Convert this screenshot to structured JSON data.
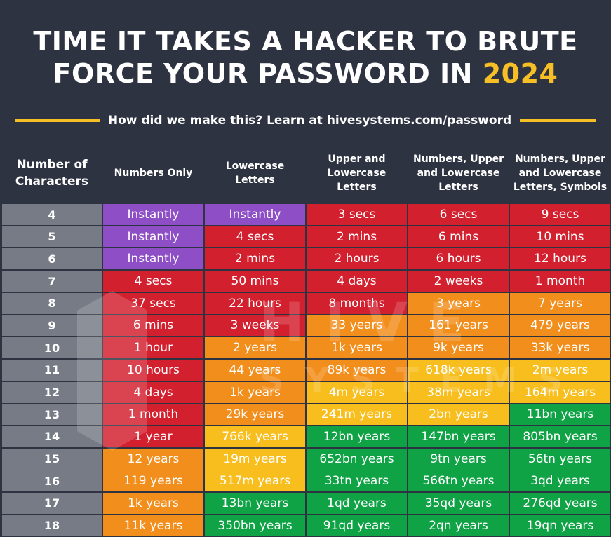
{
  "title": {
    "line1": "TIME IT TAKES A HACKER TO BRUTE",
    "line2_prefix": "FORCE YOUR PASSWORD IN ",
    "year": "2024"
  },
  "subtitle": "How did we make this? Learn at hivesystems.com/password",
  "watermark": {
    "word1": "HIVE",
    "word2": "SYSTEMS"
  },
  "headers": {
    "first": [
      "Number of",
      "Characters"
    ],
    "columns": [
      [
        "Numbers Only"
      ],
      [
        "Lowercase",
        "Letters"
      ],
      [
        "Upper and",
        "Lowercase",
        "Letters"
      ],
      [
        "Numbers, Upper",
        "and Lowercase",
        "Letters"
      ],
      [
        "Numbers, Upper",
        "and Lowercase",
        "Letters, Symbols"
      ]
    ]
  },
  "colors": {
    "purple": "#8e4ec6",
    "red": "#d3202f",
    "orange": "#f28e1c",
    "yellow": "#f7be1e",
    "green": "#10a346",
    "accent": "#f6bf26",
    "background": "#2e3341"
  },
  "rows": [
    {
      "chars": "4",
      "values": [
        "Instantly",
        "Instantly",
        "3 secs",
        "6 secs",
        "9 secs"
      ],
      "colors": [
        "purple",
        "purple",
        "red",
        "red",
        "red"
      ]
    },
    {
      "chars": "5",
      "values": [
        "Instantly",
        "4 secs",
        "2 mins",
        "6 mins",
        "10 mins"
      ],
      "colors": [
        "purple",
        "red",
        "red",
        "red",
        "red"
      ]
    },
    {
      "chars": "6",
      "values": [
        "Instantly",
        "2 mins",
        "2 hours",
        "6 hours",
        "12 hours"
      ],
      "colors": [
        "purple",
        "red",
        "red",
        "red",
        "red"
      ]
    },
    {
      "chars": "7",
      "values": [
        "4 secs",
        "50 mins",
        "4 days",
        "2 weeks",
        "1 month"
      ],
      "colors": [
        "red",
        "red",
        "red",
        "red",
        "red"
      ]
    },
    {
      "chars": "8",
      "values": [
        "37 secs",
        "22 hours",
        "8 months",
        "3 years",
        "7 years"
      ],
      "colors": [
        "red",
        "red",
        "red",
        "orange",
        "orange"
      ]
    },
    {
      "chars": "9",
      "values": [
        "6 mins",
        "3 weeks",
        "33 years",
        "161 years",
        "479 years"
      ],
      "colors": [
        "red",
        "red",
        "orange",
        "orange",
        "orange"
      ]
    },
    {
      "chars": "10",
      "values": [
        "1 hour",
        "2 years",
        "1k years",
        "9k years",
        "33k years"
      ],
      "colors": [
        "red",
        "orange",
        "orange",
        "orange",
        "orange"
      ]
    },
    {
      "chars": "11",
      "values": [
        "10 hours",
        "44 years",
        "89k years",
        "618k years",
        "2m years"
      ],
      "colors": [
        "red",
        "orange",
        "orange",
        "yellow",
        "yellow"
      ]
    },
    {
      "chars": "12",
      "values": [
        "4 days",
        "1k years",
        "4m years",
        "38m years",
        "164m years"
      ],
      "colors": [
        "red",
        "orange",
        "yellow",
        "yellow",
        "yellow"
      ]
    },
    {
      "chars": "13",
      "values": [
        "1 month",
        "29k years",
        "241m years",
        "2bn years",
        "11bn years"
      ],
      "colors": [
        "red",
        "orange",
        "yellow",
        "yellow",
        "green"
      ]
    },
    {
      "chars": "14",
      "values": [
        "1 year",
        "766k years",
        "12bn years",
        "147bn years",
        "805bn years"
      ],
      "colors": [
        "red",
        "yellow",
        "green",
        "green",
        "green"
      ]
    },
    {
      "chars": "15",
      "values": [
        "12 years",
        "19m years",
        "652bn years",
        "9tn years",
        "56tn years"
      ],
      "colors": [
        "orange",
        "yellow",
        "green",
        "green",
        "green"
      ]
    },
    {
      "chars": "16",
      "values": [
        "119 years",
        "517m years",
        "33tn years",
        "566tn years",
        "3qd years"
      ],
      "colors": [
        "orange",
        "yellow",
        "green",
        "green",
        "green"
      ]
    },
    {
      "chars": "17",
      "values": [
        "1k years",
        "13bn years",
        "1qd years",
        "35qd years",
        "276qd years"
      ],
      "colors": [
        "orange",
        "green",
        "green",
        "green",
        "green"
      ]
    },
    {
      "chars": "18",
      "values": [
        "11k years",
        "350bn years",
        "91qd years",
        "2qn years",
        "19qn years"
      ],
      "colors": [
        "orange",
        "green",
        "green",
        "green",
        "green"
      ]
    }
  ]
}
